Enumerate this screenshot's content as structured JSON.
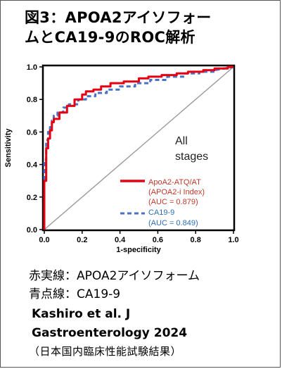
{
  "figure": {
    "title_line1": "図3：APOA2アイソフォー",
    "title_line2": "ムとCA19-9のROC解析",
    "caption_line1": "赤実線：APOA2アイソフォーム",
    "caption_line2": "青点線：CA19-9",
    "citation_line1": "Kashiro et al. J",
    "citation_line2": "Gastroenterology  2024",
    "citation_line3": "（日本国内臨床性能試験結果）"
  },
  "colors": {
    "apoa2": "#e60012",
    "ca199": "#4a72c4",
    "diagonal": "#9a9a9a",
    "annotation_text": "#c0392b",
    "ca_text": "#2e6db4"
  },
  "chart_data": {
    "type": "line",
    "title": "",
    "xlabel": "1-specificity",
    "ylabel": "Sensitivity",
    "xlim": [
      0,
      1
    ],
    "ylim": [
      0,
      1
    ],
    "xticks": [
      "0.0",
      "0.2",
      "0.4",
      "0.6",
      "0.8",
      "1.0"
    ],
    "yticks": [
      "0.0",
      "0.2",
      "0.4",
      "0.6",
      "0.8",
      "1.0"
    ],
    "grid": false,
    "stage_label_line1": "All",
    "stage_label_line2": "stages",
    "series": [
      {
        "name": "ApoA2-ATQ/AT",
        "subtitle": "(APOA2-i Index)",
        "auc_label": "(AUC = 0.879)",
        "style": "solid",
        "x": [
          0,
          0,
          0.01,
          0.01,
          0.02,
          0.02,
          0.03,
          0.03,
          0.04,
          0.04,
          0.05,
          0.05,
          0.08,
          0.08,
          0.12,
          0.12,
          0.16,
          0.16,
          0.2,
          0.2,
          0.22,
          0.22,
          0.26,
          0.26,
          0.3,
          0.3,
          0.35,
          0.35,
          0.42,
          0.42,
          0.5,
          0.5,
          0.55,
          0.55,
          0.62,
          0.62,
          0.7,
          0.7,
          0.76,
          0.76,
          0.84,
          0.84,
          0.9,
          0.9,
          0.97,
          0.97,
          1.0
        ],
        "y": [
          0,
          0.3,
          0.3,
          0.5,
          0.5,
          0.56,
          0.56,
          0.61,
          0.61,
          0.66,
          0.66,
          0.68,
          0.68,
          0.72,
          0.72,
          0.76,
          0.76,
          0.8,
          0.8,
          0.83,
          0.83,
          0.85,
          0.85,
          0.86,
          0.86,
          0.88,
          0.88,
          0.9,
          0.9,
          0.91,
          0.91,
          0.93,
          0.93,
          0.94,
          0.94,
          0.95,
          0.95,
          0.96,
          0.96,
          0.97,
          0.97,
          0.98,
          0.98,
          0.99,
          0.99,
          1.0,
          1.0
        ]
      },
      {
        "name": "CA19-9",
        "auc_label": "(AUC = 0.849)",
        "style": "dashed",
        "x": [
          0,
          0,
          0.01,
          0.01,
          0.02,
          0.02,
          0.03,
          0.03,
          0.04,
          0.04,
          0.05,
          0.05,
          0.07,
          0.07,
          0.1,
          0.1,
          0.13,
          0.13,
          0.18,
          0.18,
          0.22,
          0.22,
          0.27,
          0.27,
          0.33,
          0.33,
          0.4,
          0.4,
          0.48,
          0.48,
          0.56,
          0.56,
          0.65,
          0.65,
          0.74,
          0.74,
          0.82,
          0.82,
          0.9,
          0.9,
          1.0
        ],
        "y": [
          0,
          0.43,
          0.43,
          0.55,
          0.55,
          0.6,
          0.6,
          0.63,
          0.63,
          0.67,
          0.67,
          0.7,
          0.7,
          0.72,
          0.72,
          0.75,
          0.75,
          0.77,
          0.77,
          0.8,
          0.8,
          0.82,
          0.82,
          0.84,
          0.84,
          0.86,
          0.86,
          0.88,
          0.88,
          0.9,
          0.9,
          0.92,
          0.92,
          0.94,
          0.94,
          0.96,
          0.96,
          0.97,
          0.97,
          0.98,
          1.0
        ]
      }
    ]
  }
}
